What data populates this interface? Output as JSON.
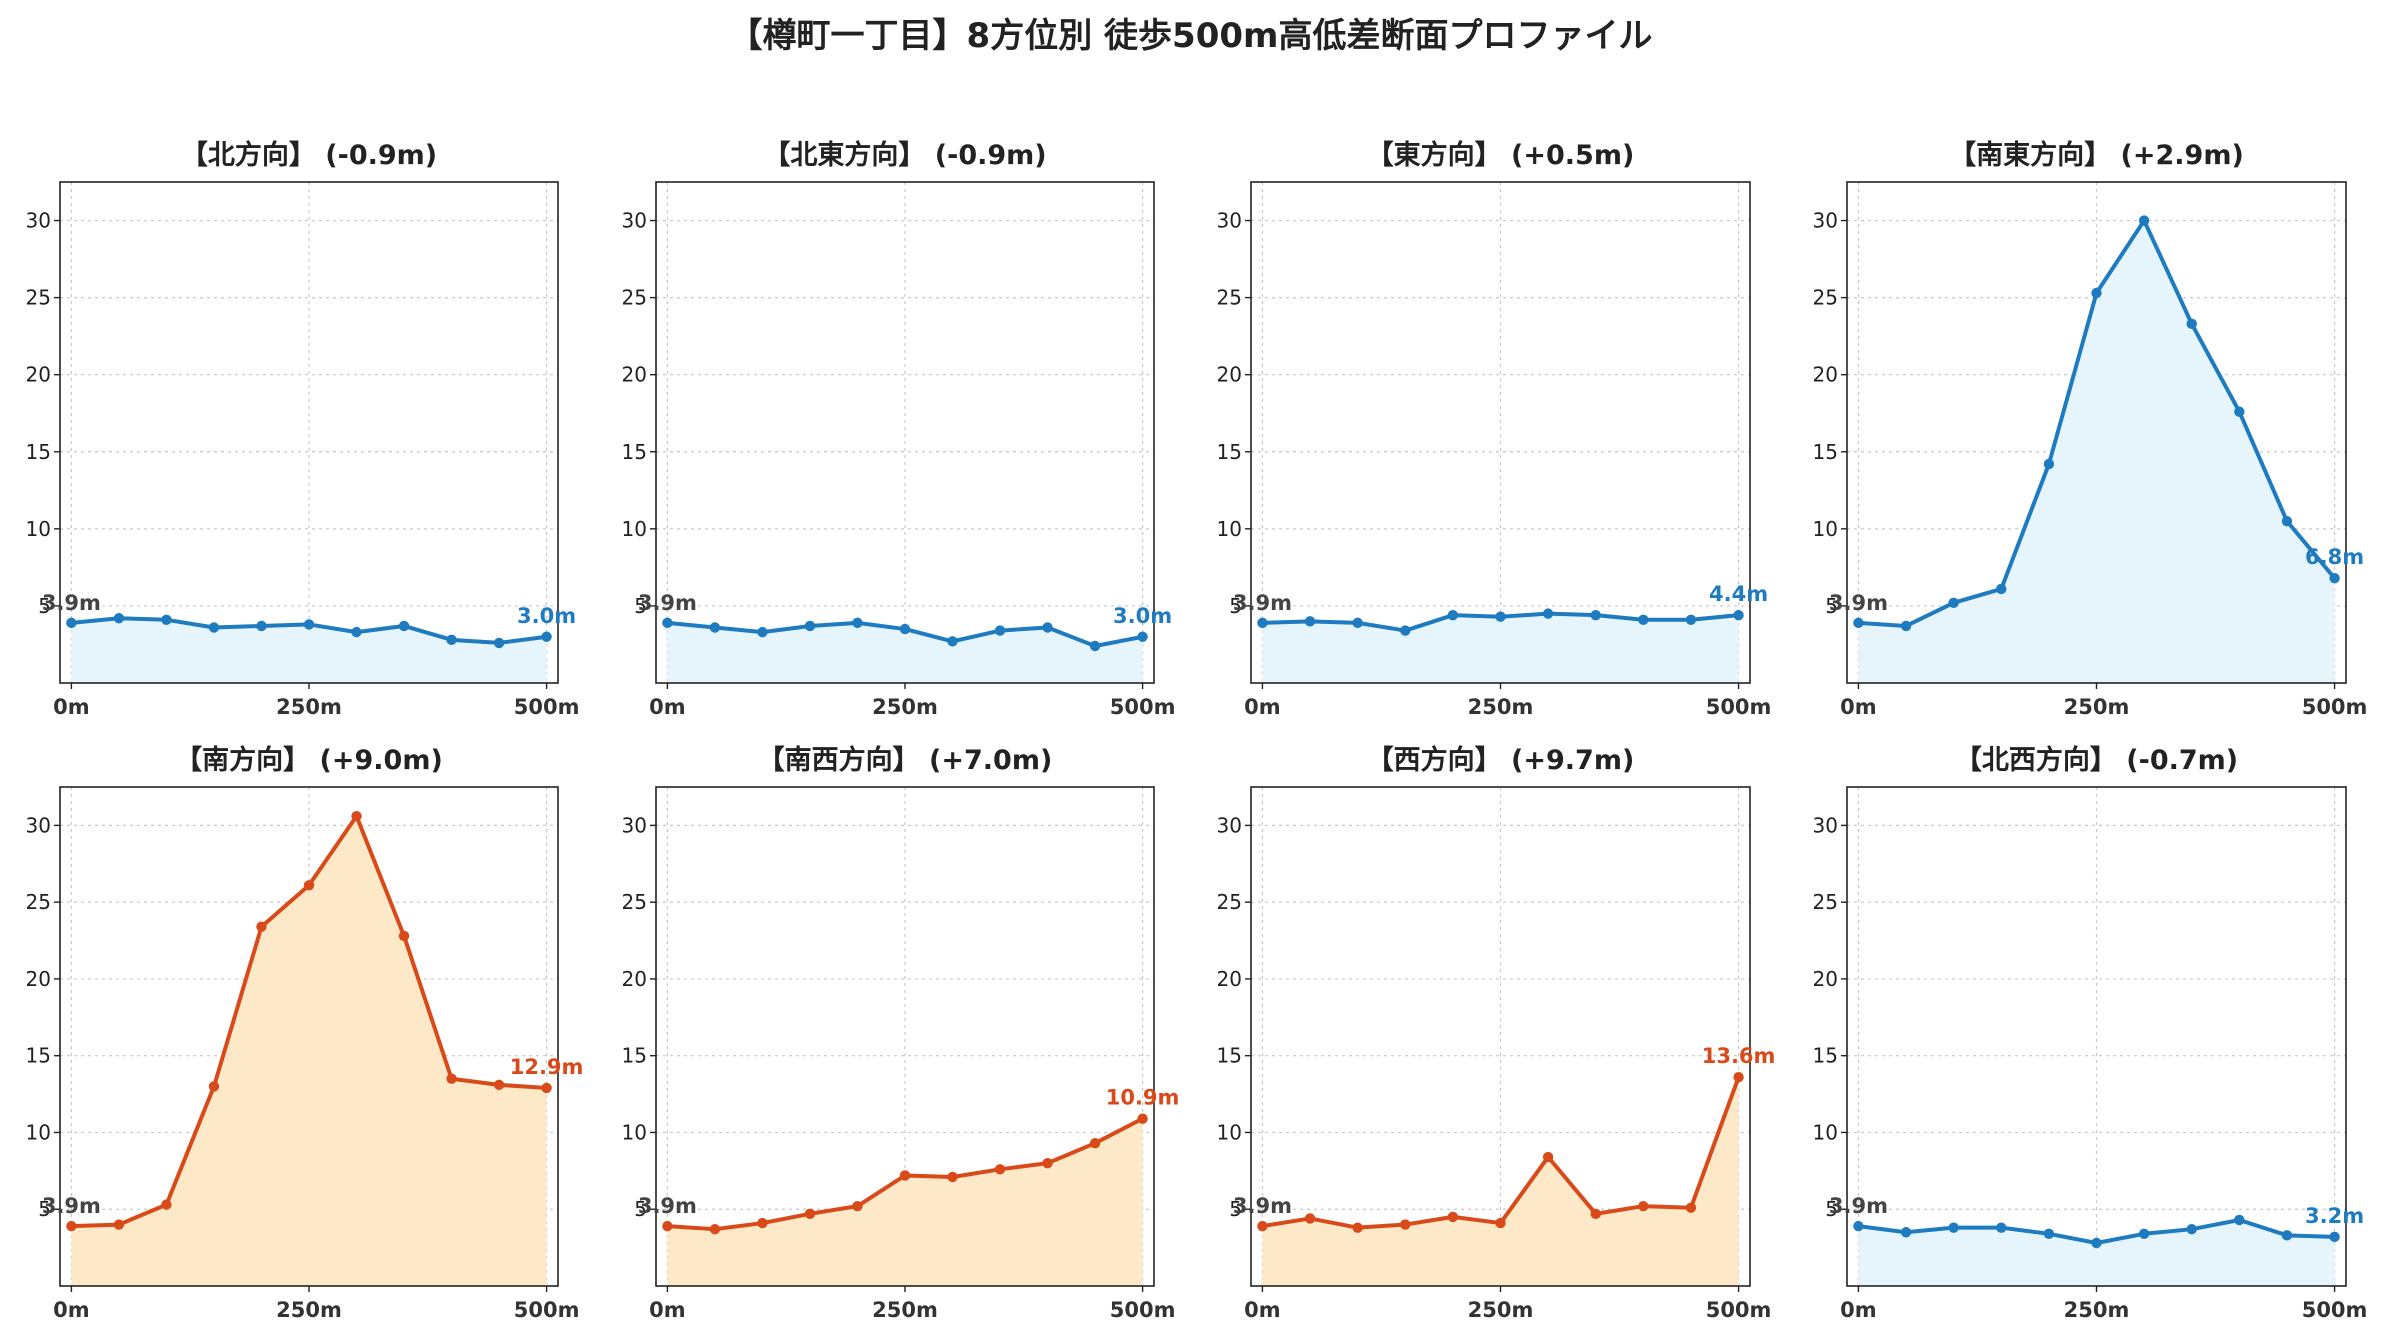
{
  "title": "【樽町一丁目】8方位別 徒歩500m高低差断面プロファイル",
  "colors": {
    "down": "#1f7bbf",
    "up": "#d94a1a",
    "down_fill": "#e6f5fb",
    "up_fill": "#fde9c8",
    "start_label": "#444444"
  },
  "chart_data": [
    {
      "type": "line",
      "title": "【北方向】 (-0.9m)",
      "trend": "down",
      "x": [
        0,
        50,
        100,
        150,
        200,
        250,
        300,
        350,
        400,
        450,
        500
      ],
      "y": [
        3.9,
        4.2,
        4.1,
        3.6,
        3.7,
        3.8,
        3.3,
        3.7,
        2.8,
        2.6,
        3.0
      ],
      "start_label": "3.9m",
      "end_label": "3.0m",
      "ylim": [
        0,
        32.5
      ],
      "xlim": [
        -12,
        512
      ],
      "yticks": [
        5,
        10,
        15,
        20,
        25,
        30
      ],
      "ytick_labels": [
        "5",
        "10",
        "15",
        "20",
        "25",
        "30"
      ],
      "xticks": [
        0,
        250,
        500
      ],
      "xtick_labels": [
        "0m",
        "250m",
        "500m"
      ],
      "grid": true
    },
    {
      "type": "line",
      "title": "【北東方向】 (-0.9m)",
      "trend": "down",
      "x": [
        0,
        50,
        100,
        150,
        200,
        250,
        300,
        350,
        400,
        450,
        500
      ],
      "y": [
        3.9,
        3.6,
        3.3,
        3.7,
        3.9,
        3.5,
        2.7,
        3.4,
        3.6,
        2.4,
        3.0
      ],
      "start_label": "3.9m",
      "end_label": "3.0m",
      "ylim": [
        0,
        32.5
      ],
      "xlim": [
        -12,
        512
      ],
      "yticks": [
        5,
        10,
        15,
        20,
        25,
        30
      ],
      "ytick_labels": [
        "5",
        "10",
        "15",
        "20",
        "25",
        "30"
      ],
      "xticks": [
        0,
        250,
        500
      ],
      "xtick_labels": [
        "0m",
        "250m",
        "500m"
      ],
      "grid": true
    },
    {
      "type": "line",
      "title": "【東方向】 (+0.5m)",
      "trend": "down",
      "x": [
        0,
        50,
        100,
        150,
        200,
        250,
        300,
        350,
        400,
        450,
        500
      ],
      "y": [
        3.9,
        4.0,
        3.9,
        3.4,
        4.4,
        4.3,
        4.5,
        4.4,
        4.1,
        4.1,
        4.4
      ],
      "start_label": "3.9m",
      "end_label": "4.4m",
      "ylim": [
        0,
        32.5
      ],
      "xlim": [
        -12,
        512
      ],
      "yticks": [
        5,
        10,
        15,
        20,
        25,
        30
      ],
      "ytick_labels": [
        "5",
        "10",
        "15",
        "20",
        "25",
        "30"
      ],
      "xticks": [
        0,
        250,
        500
      ],
      "xtick_labels": [
        "0m",
        "250m",
        "500m"
      ],
      "grid": true
    },
    {
      "type": "line",
      "title": "【南東方向】 (+2.9m)",
      "trend": "down",
      "x": [
        0,
        50,
        100,
        150,
        200,
        250,
        300,
        350,
        400,
        450,
        500
      ],
      "y": [
        3.9,
        3.7,
        5.2,
        6.1,
        14.2,
        25.3,
        30.0,
        23.3,
        17.6,
        10.5,
        6.8
      ],
      "start_label": "3.9m",
      "end_label": "6.8m",
      "ylim": [
        0,
        32.5
      ],
      "xlim": [
        -12,
        512
      ],
      "yticks": [
        5,
        10,
        15,
        20,
        25,
        30
      ],
      "ytick_labels": [
        "5",
        "10",
        "15",
        "20",
        "25",
        "30"
      ],
      "xticks": [
        0,
        250,
        500
      ],
      "xtick_labels": [
        "0m",
        "250m",
        "500m"
      ],
      "grid": true
    },
    {
      "type": "line",
      "title": "【南方向】 (+9.0m)",
      "trend": "up",
      "x": [
        0,
        50,
        100,
        150,
        200,
        250,
        300,
        350,
        400,
        450,
        500
      ],
      "y": [
        3.9,
        4.0,
        5.3,
        13.0,
        23.4,
        26.1,
        30.6,
        22.8,
        13.5,
        13.1,
        12.9
      ],
      "start_label": "3.9m",
      "end_label": "12.9m",
      "ylim": [
        0,
        32.5
      ],
      "xlim": [
        -12,
        512
      ],
      "yticks": [
        5,
        10,
        15,
        20,
        25,
        30
      ],
      "ytick_labels": [
        "5",
        "10",
        "15",
        "20",
        "25",
        "30"
      ],
      "xticks": [
        0,
        250,
        500
      ],
      "xtick_labels": [
        "0m",
        "250m",
        "500m"
      ],
      "grid": true
    },
    {
      "type": "line",
      "title": "【南西方向】 (+7.0m)",
      "trend": "up",
      "x": [
        0,
        50,
        100,
        150,
        200,
        250,
        300,
        350,
        400,
        450,
        500
      ],
      "y": [
        3.9,
        3.7,
        4.1,
        4.7,
        5.2,
        7.2,
        7.1,
        7.6,
        8.0,
        9.3,
        10.9
      ],
      "start_label": "3.9m",
      "end_label": "10.9m",
      "ylim": [
        0,
        32.5
      ],
      "xlim": [
        -12,
        512
      ],
      "yticks": [
        5,
        10,
        15,
        20,
        25,
        30
      ],
      "ytick_labels": [
        "5",
        "10",
        "15",
        "20",
        "25",
        "30"
      ],
      "xticks": [
        0,
        250,
        500
      ],
      "xtick_labels": [
        "0m",
        "250m",
        "500m"
      ],
      "grid": true
    },
    {
      "type": "line",
      "title": "【西方向】 (+9.7m)",
      "trend": "up",
      "x": [
        0,
        50,
        100,
        150,
        200,
        250,
        300,
        350,
        400,
        450,
        500
      ],
      "y": [
        3.9,
        4.4,
        3.8,
        4.0,
        4.5,
        4.1,
        8.4,
        4.7,
        5.2,
        5.1,
        13.6
      ],
      "start_label": "3.9m",
      "end_label": "13.6m",
      "ylim": [
        0,
        32.5
      ],
      "xlim": [
        -12,
        512
      ],
      "yticks": [
        5,
        10,
        15,
        20,
        25,
        30
      ],
      "ytick_labels": [
        "5",
        "10",
        "15",
        "20",
        "25",
        "30"
      ],
      "xticks": [
        0,
        250,
        500
      ],
      "xtick_labels": [
        "0m",
        "250m",
        "500m"
      ],
      "grid": true
    },
    {
      "type": "line",
      "title": "【北西方向】 (-0.7m)",
      "trend": "down",
      "x": [
        0,
        50,
        100,
        150,
        200,
        250,
        300,
        350,
        400,
        450,
        500
      ],
      "y": [
        3.9,
        3.5,
        3.8,
        3.8,
        3.4,
        2.8,
        3.4,
        3.7,
        4.3,
        3.3,
        3.2
      ],
      "start_label": "3.9m",
      "end_label": "3.2m",
      "ylim": [
        0,
        32.5
      ],
      "xlim": [
        -12,
        512
      ],
      "yticks": [
        5,
        10,
        15,
        20,
        25,
        30
      ],
      "ytick_labels": [
        "5",
        "10",
        "15",
        "20",
        "25",
        "30"
      ],
      "xticks": [
        0,
        250,
        500
      ],
      "xtick_labels": [
        "0m",
        "250m",
        "500m"
      ],
      "grid": true
    }
  ]
}
